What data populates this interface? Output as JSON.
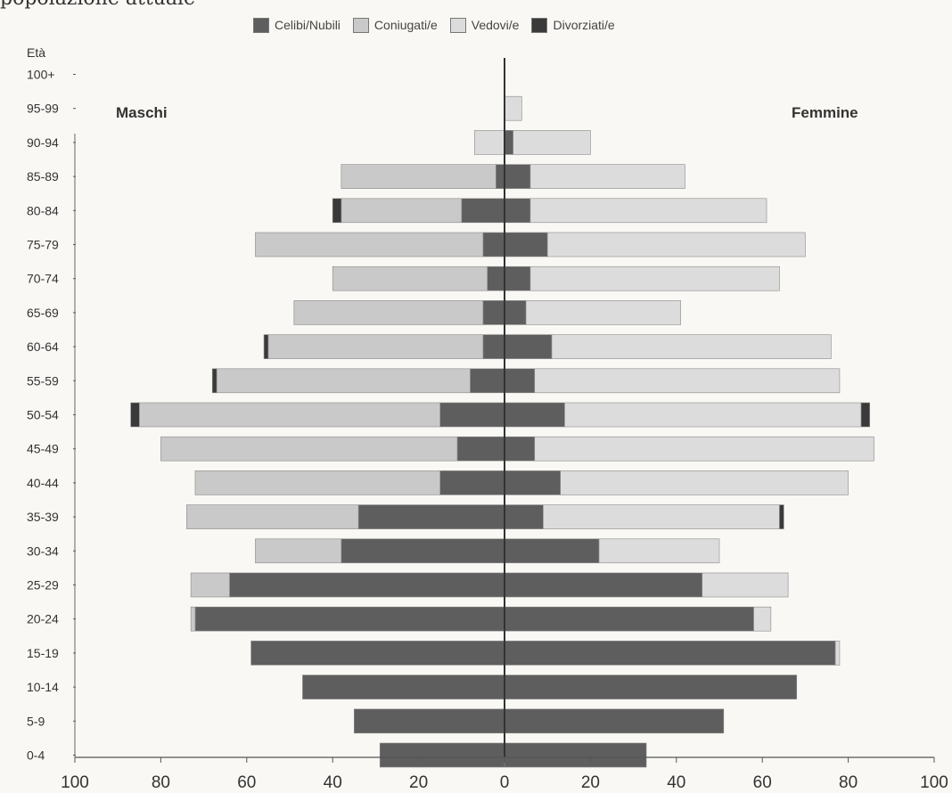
{
  "header_text": "popolazione attuale",
  "chart_data": {
    "type": "bar",
    "orientation": "horizontal",
    "layout": "population-pyramid",
    "stacking": "outward-from-center",
    "age_axis_title": "Età",
    "side_labels": {
      "left": "Maschi",
      "right": "Femmine"
    },
    "categories": [
      "100+",
      "95-99",
      "90-94",
      "85-89",
      "80-84",
      "75-79",
      "70-74",
      "65-69",
      "60-64",
      "55-59",
      "50-54",
      "45-49",
      "40-44",
      "35-39",
      "30-34",
      "25-29",
      "20-24",
      "15-19",
      "10-14",
      "5-9",
      "0-4"
    ],
    "x_ticks": [
      {
        "value": -100,
        "label": "100"
      },
      {
        "value": -80,
        "label": "80"
      },
      {
        "value": -60,
        "label": "60"
      },
      {
        "value": -40,
        "label": "40"
      },
      {
        "value": -20,
        "label": "20"
      },
      {
        "value": 0,
        "label": "0"
      },
      {
        "value": 20,
        "label": "20"
      },
      {
        "value": 40,
        "label": "40"
      },
      {
        "value": 60,
        "label": "60"
      },
      {
        "value": 80,
        "label": "80"
      },
      {
        "value": 100,
        "label": "100"
      }
    ],
    "xlim": [
      -100,
      100
    ],
    "grid": false,
    "legend_position": "top",
    "series": [
      {
        "name": "Celibi/Nubili",
        "color": "#5e5e5e",
        "males": [
          0,
          0,
          0,
          2,
          10,
          5,
          4,
          5,
          5,
          8,
          15,
          11,
          15,
          34,
          38,
          64,
          72,
          59,
          47,
          35,
          29
        ],
        "females": [
          0,
          0,
          2,
          6,
          6,
          10,
          6,
          5,
          11,
          7,
          14,
          7,
          13,
          9,
          22,
          46,
          58,
          77,
          68,
          51,
          33
        ]
      },
      {
        "name": "Coniugati/e",
        "color": "#c9c9c9",
        "males": [
          0,
          0,
          0,
          36,
          28,
          53,
          36,
          44,
          50,
          59,
          70,
          69,
          57,
          40,
          20,
          9,
          1,
          0,
          0,
          0,
          0
        ],
        "females": [
          0,
          0,
          0,
          0,
          0,
          0,
          0,
          0,
          0,
          0,
          0,
          0,
          0,
          0,
          0,
          0,
          0,
          0,
          0,
          0,
          0
        ]
      },
      {
        "name": "Vedovi/e",
        "color": "#dcdcdc",
        "males": [
          0,
          0,
          7,
          0,
          0,
          0,
          0,
          0,
          0,
          0,
          0,
          0,
          0,
          0,
          0,
          0,
          0,
          0,
          0,
          0,
          0
        ],
        "females": [
          0,
          4,
          18,
          36,
          55,
          60,
          58,
          36,
          65,
          71,
          69,
          79,
          67,
          55,
          28,
          20,
          4,
          1,
          0,
          0,
          0
        ]
      },
      {
        "name": "Divorziati/e",
        "color": "#3a3a3a",
        "males": [
          0,
          0,
          0,
          0,
          2,
          0,
          0,
          0,
          1,
          1,
          2,
          0,
          0,
          0,
          0,
          0,
          0,
          0,
          0,
          0,
          0
        ],
        "females": [
          0,
          0,
          0,
          0,
          0,
          0,
          0,
          0,
          0,
          0,
          2,
          0,
          0,
          1,
          0,
          0,
          0,
          0,
          0,
          0,
          0
        ]
      }
    ]
  }
}
